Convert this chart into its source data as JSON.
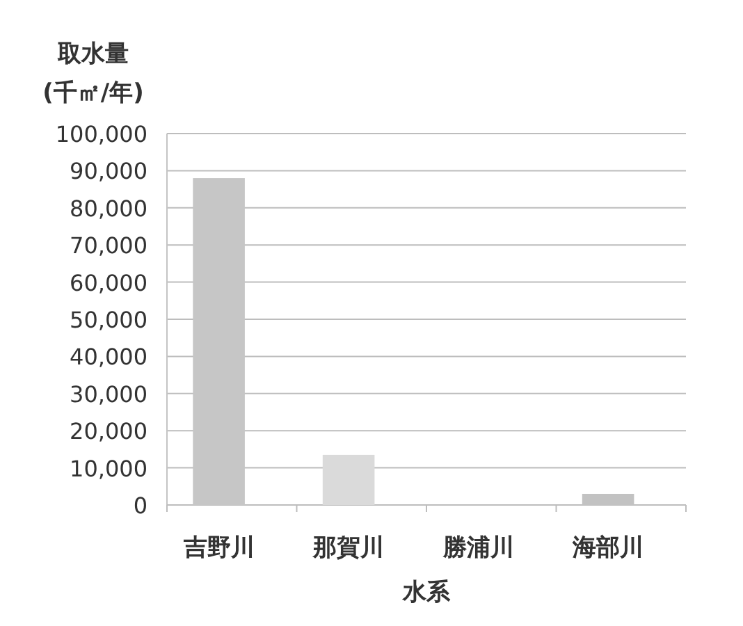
{
  "chart_data": {
    "type": "bar",
    "categories": [
      "吉野川",
      "那賀川",
      "勝浦川",
      "海部川"
    ],
    "values": [
      88000,
      13500,
      0,
      3000
    ],
    "colors": [
      "#c6c6c6",
      "#dadada",
      "#cfcfcf",
      "#c2c2c2"
    ],
    "xlabel": "水系",
    "ylabel": "取水量\n(千㎡/年)",
    "ylim": [
      0,
      100000
    ],
    "yticks": [
      0,
      {
        "value": 10000,
        "label": "10,000"
      },
      {
        "value": 20000,
        "label": "20,000"
      },
      {
        "value": 30000,
        "label": "30,000"
      },
      {
        "value": 40000,
        "label": "40,000"
      },
      {
        "value": 50000,
        "label": "50,000"
      },
      {
        "value": 60000,
        "label": "60,000"
      },
      {
        "value": 70000,
        "label": "70,000"
      },
      {
        "value": 80000,
        "label": "80,000"
      },
      {
        "value": 90000,
        "label": "90,000"
      },
      {
        "value": 100000,
        "label": "100,000"
      }
    ],
    "grid": "y"
  }
}
